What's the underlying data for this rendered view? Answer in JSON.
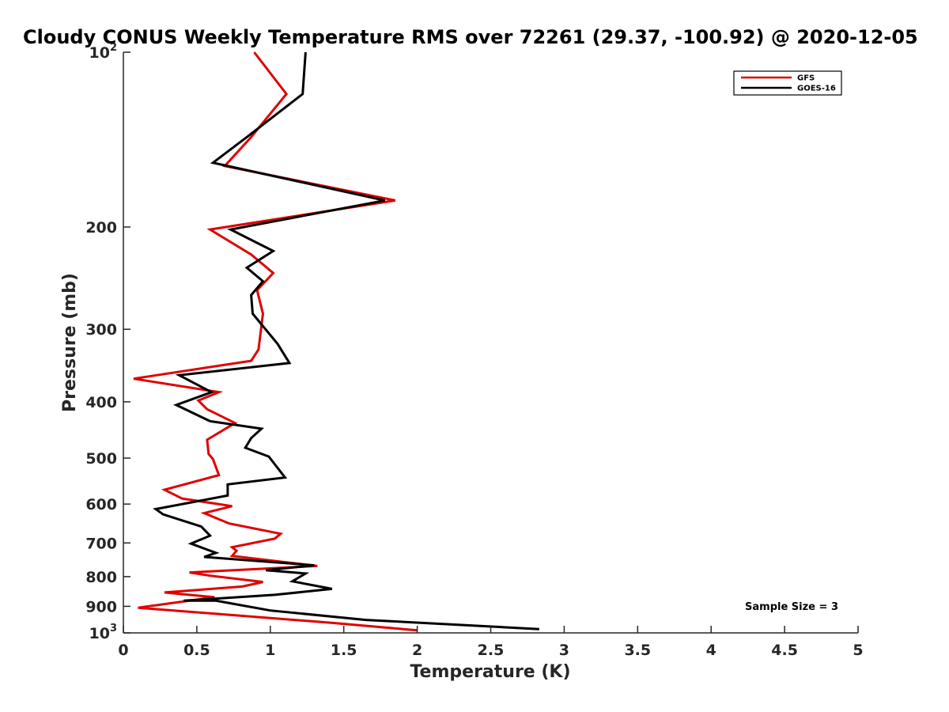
{
  "chart_data": {
    "type": "line",
    "title": "Cloudy CONUS Weekly Temperature RMS over 72261 (29.37, -100.92) @ 2020-12-05",
    "xlabel": "Temperature (K)",
    "ylabel": "Pressure (mb)",
    "xlim": [
      0,
      5
    ],
    "ylim": [
      100,
      1000
    ],
    "y_scale": "log",
    "y_reversed": true,
    "xticks": [
      "0",
      "0.5",
      "1",
      "1.5",
      "2",
      "2.5",
      "3",
      "3.5",
      "4",
      "4.5",
      "5"
    ],
    "yticks": [
      {
        "value": 100,
        "base": "10",
        "exp": "2"
      },
      {
        "value": 200,
        "label": "200"
      },
      {
        "value": 300,
        "label": "300"
      },
      {
        "value": 400,
        "label": "400"
      },
      {
        "value": 500,
        "label": "500"
      },
      {
        "value": 600,
        "label": "600"
      },
      {
        "value": 700,
        "label": "700"
      },
      {
        "value": 800,
        "label": "800"
      },
      {
        "value": 900,
        "label": "900"
      },
      {
        "value": 1000,
        "base": "10",
        "exp": "3"
      }
    ],
    "legend_position": "top-right",
    "series": [
      {
        "name": "GFS",
        "color": "#e00000",
        "points": [
          [
            0.89,
            100
          ],
          [
            1.11,
            118
          ],
          [
            0.87,
            140
          ],
          [
            0.69,
            157
          ],
          [
            1.85,
            180
          ],
          [
            0.59,
            202
          ],
          [
            0.87,
            223
          ],
          [
            1.02,
            240
          ],
          [
            0.91,
            257
          ],
          [
            0.95,
            282
          ],
          [
            0.92,
            325
          ],
          [
            0.87,
            340
          ],
          [
            0.07,
            365
          ],
          [
            0.65,
            385
          ],
          [
            0.51,
            398
          ],
          [
            0.57,
            412
          ],
          [
            0.76,
            435
          ],
          [
            0.57,
            465
          ],
          [
            0.58,
            492
          ],
          [
            0.61,
            502
          ],
          [
            0.65,
            535
          ],
          [
            0.28,
            567
          ],
          [
            0.4,
            587
          ],
          [
            0.74,
            605
          ],
          [
            0.55,
            622
          ],
          [
            0.72,
            648
          ],
          [
            1.07,
            675
          ],
          [
            1.03,
            688
          ],
          [
            0.74,
            712
          ],
          [
            0.77,
            722
          ],
          [
            0.74,
            737
          ],
          [
            1.32,
            767
          ],
          [
            0.45,
            787
          ],
          [
            0.59,
            797
          ],
          [
            0.95,
            817
          ],
          [
            0.81,
            832
          ],
          [
            0.28,
            852
          ],
          [
            0.62,
            868
          ],
          [
            0.1,
            905
          ],
          [
            1.4,
            960
          ],
          [
            2.0,
            990
          ]
        ]
      },
      {
        "name": "GOES-16",
        "color": "#000000",
        "points": [
          [
            1.24,
            100
          ],
          [
            1.22,
            118
          ],
          [
            0.84,
            140
          ],
          [
            0.61,
            155
          ],
          [
            1.78,
            180
          ],
          [
            0.73,
            202
          ],
          [
            1.02,
            220
          ],
          [
            0.84,
            235
          ],
          [
            0.95,
            248
          ],
          [
            0.87,
            262
          ],
          [
            0.88,
            282
          ],
          [
            1.05,
            318
          ],
          [
            1.13,
            343
          ],
          [
            0.38,
            360
          ],
          [
            0.6,
            385
          ],
          [
            0.36,
            405
          ],
          [
            0.59,
            432
          ],
          [
            0.94,
            445
          ],
          [
            0.87,
            462
          ],
          [
            0.83,
            480
          ],
          [
            0.99,
            497
          ],
          [
            1.1,
            540
          ],
          [
            0.71,
            555
          ],
          [
            0.71,
            580
          ],
          [
            0.22,
            612
          ],
          [
            0.27,
            625
          ],
          [
            0.53,
            656
          ],
          [
            0.59,
            680
          ],
          [
            0.46,
            702
          ],
          [
            0.63,
            728
          ],
          [
            0.55,
            740
          ],
          [
            1.3,
            765
          ],
          [
            0.97,
            780
          ],
          [
            1.24,
            790
          ],
          [
            1.15,
            815
          ],
          [
            1.42,
            840
          ],
          [
            1.03,
            860
          ],
          [
            0.41,
            880
          ],
          [
            0.63,
            880
          ],
          [
            1.0,
            915
          ],
          [
            1.65,
            950
          ],
          [
            2.83,
            985
          ]
        ]
      }
    ],
    "annotations": [
      {
        "text": "Sample Size = 3"
      }
    ]
  }
}
